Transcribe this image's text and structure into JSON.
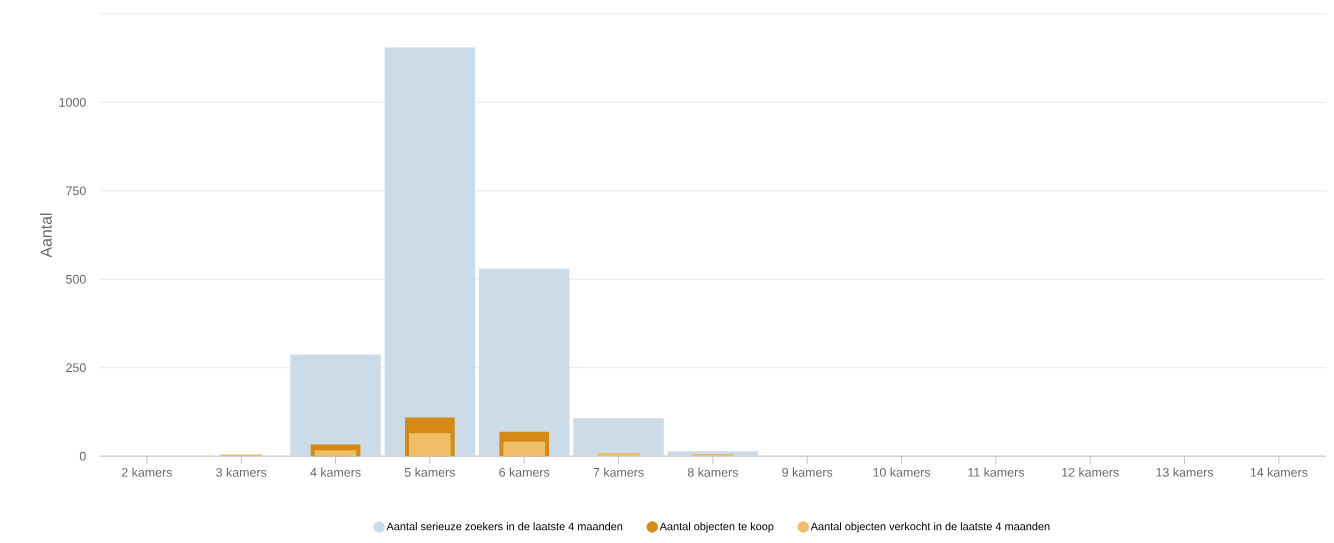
{
  "chart_data": {
    "type": "bar",
    "ylabel": "Aantal",
    "categories": [
      "2 kamers",
      "3 kamers",
      "4 kamers",
      "5 kamers",
      "6 kamers",
      "7 kamers",
      "8 kamers",
      "9 kamers",
      "10 kamers",
      "11 kamers",
      "12 kamers",
      "13 kamers",
      "14 kamers"
    ],
    "series": [
      {
        "name": "Aantal serieuze zoekers in de laatste 4 maanden",
        "color": "#cbdbe7",
        "values": [
          0,
          0,
          287,
          1155,
          530,
          107,
          14,
          0,
          0,
          0,
          0,
          0,
          0
        ]
      },
      {
        "name": "Aantal objecten te koop",
        "color": "#d68a16",
        "values": [
          0,
          null,
          33,
          109,
          69,
          null,
          null,
          0,
          0,
          0,
          0,
          0,
          0
        ]
      },
      {
        "name": "Aantal objecten verkocht in de laatste 4 maanden",
        "color": "#edbd68",
        "values": [
          0,
          5,
          17,
          65,
          41,
          9,
          6,
          0,
          0,
          0,
          0,
          0,
          0
        ]
      }
    ],
    "ylim": [
      0,
      1250
    ],
    "yticks": [
      0,
      250,
      500,
      750,
      1000,
      {
        "value": 1250,
        "label": null
      }
    ],
    "grid": "y",
    "legend": "bottom"
  }
}
